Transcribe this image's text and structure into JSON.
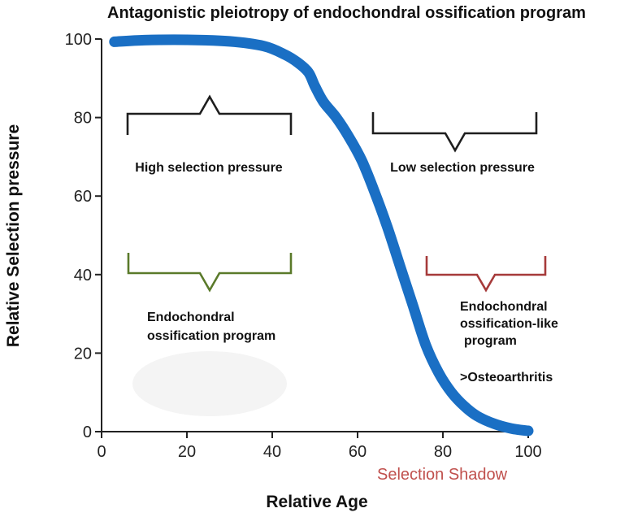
{
  "chart_data": {
    "type": "line",
    "title": "Antagonistic pleiotropy of endochondral ossification program",
    "xlabel": "Relative Age",
    "ylabel": "Relative Selection pressure",
    "xlim": [
      0,
      100
    ],
    "ylim": [
      0,
      100
    ],
    "xticks": [
      0,
      20,
      40,
      60,
      80,
      100
    ],
    "yticks": [
      0,
      20,
      40,
      60,
      80,
      100
    ],
    "grid": false,
    "series": [
      {
        "name": "Relative Selection pressure",
        "color": "#1a6fc4",
        "x": [
          3,
          10,
          20,
          30,
          38,
          43,
          46,
          48.5,
          50,
          52,
          55,
          58,
          61,
          64,
          67,
          70,
          73,
          76,
          79,
          82,
          85,
          88,
          92,
          96,
          100
        ],
        "y": [
          99.3,
          99.7,
          99.8,
          99.4,
          98.2,
          96,
          94,
          91.5,
          88,
          84,
          80,
          75,
          69,
          61,
          52,
          42,
          32,
          22,
          15,
          10,
          6.5,
          4,
          2,
          0.8,
          0.2
        ]
      }
    ],
    "annotations": {
      "high_pressure": "High selection pressure",
      "low_pressure": "Low selection pressure",
      "endo_line1": "Endochondral",
      "endo_line2": "ossification program",
      "like_line1": "Endochondral",
      "like_line2": "ossification-like",
      "like_line3": "program",
      "osteo": ">Osteoarthritis",
      "selection_shadow": "Selection Shadow"
    },
    "colors": {
      "black_bracket": "#1e1e1e",
      "green_bracket": "#5a7a2a",
      "red_bracket": "#a63a3a",
      "shadow_text": "#c0504d"
    }
  }
}
